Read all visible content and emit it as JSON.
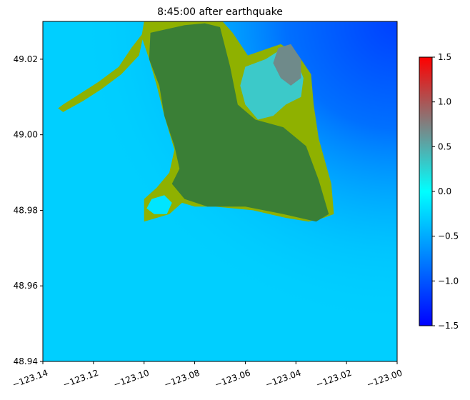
{
  "chart_data": {
    "type": "heatmap",
    "title": "8:45:00 after earthquake",
    "xlim": [
      -123.14,
      -123.0
    ],
    "ylim": [
      48.94,
      49.03
    ],
    "xticks": [
      -123.14,
      -123.12,
      -123.1,
      -123.08,
      -123.06,
      -123.04,
      -123.02,
      -123.0
    ],
    "xtick_labels": [
      "−123.14",
      "−123.12",
      "−123.10",
      "−123.08",
      "−123.06",
      "−123.04",
      "−123.02",
      "−123.00"
    ],
    "yticks": [
      48.94,
      48.96,
      48.98,
      49.0,
      49.02
    ],
    "ytick_labels": [
      "48.94",
      "48.96",
      "48.98",
      "49.00",
      "49.02"
    ],
    "colorbar": {
      "range": [
        -1.5,
        1.5
      ],
      "ticks": [
        -1.5,
        -1.0,
        -0.5,
        0.0,
        0.5,
        1.0,
        1.5
      ],
      "tick_labels": [
        "−1.5",
        "−1.0",
        "−0.5",
        "0.0",
        "0.5",
        "1.0",
        "1.5"
      ],
      "colors": [
        "#0000ff",
        "#0080ff",
        "#00ffff",
        "#808080",
        "#ff0000"
      ]
    },
    "colors": {
      "water": "#00cfff",
      "water_deep": "#0050ff",
      "land_dry": "#3a7f36",
      "land_shore": "#8fb100"
    },
    "regions": {
      "land_dry": [
        [
          -123.0975,
          49.027
        ],
        [
          -123.084,
          49.029
        ],
        [
          -123.076,
          49.0295
        ],
        [
          -123.07,
          49.0285
        ],
        [
          -123.066,
          49.018
        ],
        [
          -123.063,
          49.008
        ],
        [
          -123.056,
          49.004
        ],
        [
          -123.045,
          49.002
        ],
        [
          -123.036,
          48.997
        ],
        [
          -123.031,
          48.988
        ],
        [
          -123.027,
          48.979
        ],
        [
          -123.032,
          48.977
        ],
        [
          -123.045,
          48.979
        ],
        [
          -123.06,
          48.981
        ],
        [
          -123.075,
          48.981
        ],
        [
          -123.084,
          48.983
        ],
        [
          -123.089,
          48.987
        ],
        [
          -123.086,
          48.991
        ],
        [
          -123.088,
          48.997
        ],
        [
          -123.092,
          49.005
        ],
        [
          -123.094,
          49.013
        ],
        [
          -123.098,
          49.02
        ]
      ],
      "land_shore": [
        [
          -123.1,
          49.03
        ],
        [
          -123.069,
          49.03
        ],
        [
          -123.065,
          49.027
        ],
        [
          -123.059,
          49.021
        ],
        [
          -123.046,
          49.024
        ],
        [
          -123.039,
          49.021
        ],
        [
          -123.034,
          49.016
        ],
        [
          -123.033,
          49.008
        ],
        [
          -123.031,
          48.999
        ],
        [
          -123.026,
          48.987
        ],
        [
          -123.025,
          48.979
        ],
        [
          -123.029,
          48.978
        ],
        [
          -123.035,
          48.977
        ],
        [
          -123.044,
          48.978
        ],
        [
          -123.057,
          48.98
        ],
        [
          -123.072,
          48.981
        ],
        [
          -123.08,
          48.981
        ],
        [
          -123.085,
          48.982
        ],
        [
          -123.09,
          48.979
        ],
        [
          -123.1,
          48.977
        ],
        [
          -123.1,
          48.983
        ],
        [
          -123.095,
          48.986
        ],
        [
          -123.09,
          48.99
        ],
        [
          -123.088,
          48.996
        ],
        [
          -123.092,
          49.005
        ],
        [
          -123.095,
          49.013
        ],
        [
          -123.098,
          49.02
        ],
        [
          -123.101,
          49.026
        ]
      ],
      "spit": [
        [
          -123.1,
          49.027
        ],
        [
          -123.098,
          49.029
        ],
        [
          -123.105,
          49.023
        ],
        [
          -123.11,
          49.018
        ],
        [
          -123.118,
          49.014
        ],
        [
          -123.125,
          49.011
        ],
        [
          -123.132,
          49.008
        ],
        [
          -123.134,
          49.007
        ],
        [
          -123.132,
          49.006
        ],
        [
          -123.124,
          49.009
        ],
        [
          -123.117,
          49.012
        ],
        [
          -123.109,
          49.016
        ],
        [
          -123.102,
          49.021
        ]
      ],
      "lagoon": [
        [
          -123.097,
          48.983
        ],
        [
          -123.092,
          48.984
        ],
        [
          -123.089,
          48.982
        ],
        [
          -123.091,
          48.979
        ],
        [
          -123.096,
          48.979
        ],
        [
          -123.099,
          48.9805
        ]
      ],
      "inland_water": [
        [
          -123.06,
          49.018
        ],
        [
          -123.052,
          49.02
        ],
        [
          -123.045,
          49.023
        ],
        [
          -123.04,
          49.02
        ],
        [
          -123.037,
          49.015
        ],
        [
          -123.038,
          49.01
        ],
        [
          -123.044,
          49.008
        ],
        [
          -123.049,
          49.005
        ],
        [
          -123.055,
          49.004
        ],
        [
          -123.06,
          49.008
        ],
        [
          -123.062,
          49.013
        ]
      ],
      "inland_gray": [
        [
          -123.047,
          49.023
        ],
        [
          -123.042,
          49.024
        ],
        [
          -123.038,
          49.02
        ],
        [
          -123.038,
          49.015
        ],
        [
          -123.042,
          49.013
        ],
        [
          -123.046,
          49.015
        ],
        [
          -123.049,
          49.019
        ]
      ]
    }
  }
}
